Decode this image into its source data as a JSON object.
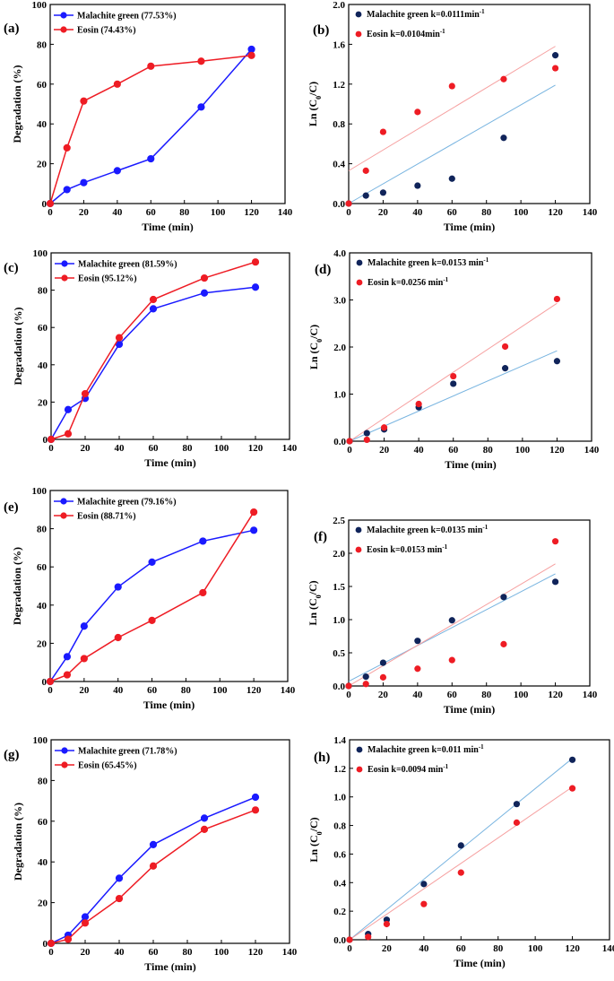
{
  "colors": {
    "blue": "#1a1aff",
    "red": "#ee1c24",
    "navy": "#10245a",
    "fitBlue": "#78b4e0",
    "fitRed": "#f6a0a0"
  },
  "chart_data": [
    {
      "id": "a",
      "panel_label": "(a)",
      "type": "line",
      "xlabel": "Time (min)",
      "ylabel": "Degradation (%)",
      "xlim": [
        0,
        140
      ],
      "ylim": [
        0,
        100
      ],
      "xticks": [
        0,
        20,
        40,
        60,
        80,
        100,
        120,
        140
      ],
      "yticks": [
        0,
        20,
        40,
        60,
        80,
        100
      ],
      "series": [
        {
          "name": "Malachite green (77.53%)",
          "color": "#1a1aff",
          "x": [
            0,
            10,
            20,
            40,
            60,
            90,
            120
          ],
          "y": [
            0,
            7,
            10.5,
            16.5,
            22.5,
            48.5,
            77.5
          ]
        },
        {
          "name": "Eosin (74.43%)",
          "color": "#ee1c24",
          "x": [
            0,
            10,
            20,
            40,
            60,
            90,
            120
          ],
          "y": [
            0,
            28,
            51.5,
            60,
            69,
            71.5,
            74.4
          ]
        }
      ]
    },
    {
      "id": "b",
      "panel_label": "(b)",
      "type": "scatter",
      "xlabel": "Time (min)",
      "ylabel": "Ln (C0/C)",
      "xlim": [
        0,
        140
      ],
      "ylim": [
        0,
        2.0
      ],
      "xticks": [
        0,
        20,
        40,
        60,
        80,
        100,
        120,
        140
      ],
      "yticks": [
        0.0,
        0.4,
        0.8,
        1.2,
        1.6,
        2.0
      ],
      "ytick_decimals": 1,
      "series": [
        {
          "name": "Malachite green",
          "rate": "k=0.0111min",
          "color": "#10245a",
          "x": [
            0,
            10,
            20,
            40,
            60,
            90,
            120
          ],
          "y": [
            0,
            0.08,
            0.11,
            0.18,
            0.25,
            0.66,
            1.49
          ],
          "fit": [
            0.0,
            1.19
          ],
          "fit_color": "#78b4e0"
        },
        {
          "name": "Eosin",
          "rate": "k=0.0104min",
          "color": "#ee1c24",
          "x": [
            0,
            10,
            20,
            40,
            60,
            90,
            120
          ],
          "y": [
            0,
            0.33,
            0.72,
            0.92,
            1.18,
            1.25,
            1.36
          ],
          "fit": [
            0.33,
            1.58
          ],
          "fit_color": "#f6a0a0"
        }
      ]
    },
    {
      "id": "c",
      "panel_label": "(c)",
      "type": "line",
      "xlabel": "Time (min)",
      "ylabel": "Degradation (%)",
      "xlim": [
        0,
        140
      ],
      "ylim": [
        0,
        100
      ],
      "xticks": [
        0,
        20,
        40,
        60,
        80,
        100,
        120,
        140
      ],
      "yticks": [
        0,
        20,
        40,
        60,
        80,
        100
      ],
      "series": [
        {
          "name": "Malachite green (81.59%)",
          "color": "#1a1aff",
          "x": [
            0,
            10,
            20,
            40,
            60,
            90,
            120
          ],
          "y": [
            0,
            16,
            22,
            51,
            70,
            78.5,
            81.6
          ]
        },
        {
          "name": "Eosin (95.12%)",
          "color": "#ee1c24",
          "x": [
            0,
            10,
            20,
            40,
            60,
            90,
            120
          ],
          "y": [
            0,
            3,
            24.5,
            54.5,
            75,
            86.5,
            95.1
          ]
        }
      ]
    },
    {
      "id": "d",
      "panel_label": "(d)",
      "type": "scatter",
      "xlabel": "Time (min)",
      "ylabel": "Ln (C0/C)",
      "xlim": [
        0,
        140
      ],
      "ylim": [
        0,
        4.0
      ],
      "xticks": [
        0,
        20,
        40,
        60,
        80,
        100,
        120,
        140
      ],
      "yticks": [
        0.0,
        1.0,
        2.0,
        3.0,
        4.0
      ],
      "ytick_decimals": 1,
      "series": [
        {
          "name": "Malachite green",
          "rate": "k=0.0153 min",
          "color": "#10245a",
          "x": [
            0,
            10,
            20,
            40,
            60,
            90,
            120
          ],
          "y": [
            0,
            0.17,
            0.25,
            0.72,
            1.22,
            1.55,
            1.7
          ],
          "fit": [
            0.0,
            1.92
          ],
          "fit_color": "#78b4e0"
        },
        {
          "name": "Eosin",
          "rate": "k=0.0256 min",
          "color": "#ee1c24",
          "x": [
            0,
            10,
            20,
            40,
            60,
            90,
            120
          ],
          "y": [
            0,
            0.03,
            0.29,
            0.79,
            1.38,
            2.01,
            3.02
          ],
          "fit": [
            0.0,
            2.93
          ],
          "fit_color": "#f6a0a0"
        }
      ]
    },
    {
      "id": "e",
      "panel_label": "(e)",
      "type": "line",
      "xlabel": "Time (min)",
      "ylabel": "Degradation (%)",
      "xlim": [
        0,
        140
      ],
      "ylim": [
        0,
        100
      ],
      "xticks": [
        0,
        20,
        40,
        60,
        80,
        100,
        120,
        140
      ],
      "yticks": [
        0,
        20,
        40,
        60,
        80,
        100
      ],
      "series": [
        {
          "name": "Malachite green (79.16%)",
          "color": "#1a1aff",
          "x": [
            0,
            10,
            20,
            40,
            60,
            90,
            120
          ],
          "y": [
            0,
            13,
            29,
            49.5,
            62.5,
            73.5,
            79.2
          ]
        },
        {
          "name": "Eosin (88.71%)",
          "color": "#ee1c24",
          "x": [
            0,
            10,
            20,
            40,
            60,
            90,
            120
          ],
          "y": [
            0,
            3.5,
            12,
            23,
            32,
            46.5,
            88.7
          ]
        }
      ]
    },
    {
      "id": "f",
      "panel_label": "(f)",
      "type": "scatter",
      "xlabel": "Time (min)",
      "ylabel": "Ln (C0/C)",
      "xlim": [
        0,
        140
      ],
      "ylim": [
        0,
        2.5
      ],
      "xticks": [
        0,
        20,
        40,
        60,
        80,
        100,
        120,
        140
      ],
      "yticks": [
        0.0,
        0.5,
        1.0,
        1.5,
        2.0,
        2.5
      ],
      "ytick_decimals": 1,
      "series": [
        {
          "name": "Malachite green",
          "rate": "k=0.0135 min",
          "color": "#10245a",
          "x": [
            0,
            10,
            20,
            40,
            60,
            90,
            120
          ],
          "y": [
            0,
            0.14,
            0.35,
            0.68,
            0.99,
            1.34,
            1.57
          ],
          "fit": [
            0.07,
            1.69
          ],
          "fit_color": "#78b4e0"
        },
        {
          "name": "Eosin",
          "rate": "k=0.0153 min",
          "color": "#ee1c24",
          "x": [
            0,
            10,
            20,
            40,
            60,
            90,
            120
          ],
          "y": [
            0,
            0.03,
            0.13,
            0.26,
            0.39,
            0.63,
            2.18
          ],
          "fit": [
            0.0,
            1.84
          ],
          "fit_color": "#f6a0a0"
        }
      ]
    },
    {
      "id": "g",
      "panel_label": "(g)",
      "type": "line",
      "xlabel": "Time (min)",
      "ylabel": "Degradation (%)",
      "xlim": [
        0,
        140
      ],
      "ylim": [
        0,
        100
      ],
      "xticks": [
        0,
        20,
        40,
        60,
        80,
        100,
        120,
        140
      ],
      "yticks": [
        0,
        20,
        40,
        60,
        80,
        100
      ],
      "series": [
        {
          "name": "Malachite green (71.78%)",
          "color": "#1a1aff",
          "x": [
            0,
            10,
            20,
            40,
            60,
            90,
            120
          ],
          "y": [
            0,
            4,
            13,
            32,
            48.5,
            61.5,
            71.8
          ]
        },
        {
          "name": "Eosin (65.45%)",
          "color": "#ee1c24",
          "x": [
            0,
            10,
            20,
            40,
            60,
            90,
            120
          ],
          "y": [
            0,
            2,
            10,
            22,
            38,
            56,
            65.5
          ]
        }
      ]
    },
    {
      "id": "h",
      "panel_label": "(h)",
      "type": "scatter",
      "xlabel": "Time (min)",
      "ylabel": "Ln (C0/C)",
      "xlim": [
        0,
        140
      ],
      "ylim": [
        0,
        1.4
      ],
      "xticks": [
        0,
        20,
        40,
        60,
        80,
        100,
        120,
        140
      ],
      "yticks": [
        0.0,
        0.2,
        0.4,
        0.6,
        0.8,
        1.0,
        1.2,
        1.4
      ],
      "ytick_decimals": 1,
      "series": [
        {
          "name": "Malachite green",
          "rate": "k=0.011 min",
          "color": "#10245a",
          "x": [
            0,
            10,
            20,
            40,
            60,
            90,
            120
          ],
          "y": [
            0,
            0.04,
            0.14,
            0.39,
            0.66,
            0.95,
            1.26
          ],
          "fit": [
            0.0,
            1.27
          ],
          "fit_color": "#78b4e0"
        },
        {
          "name": "Eosin",
          "rate": "k=0.0094 min",
          "color": "#ee1c24",
          "x": [
            0,
            10,
            20,
            40,
            60,
            90,
            120
          ],
          "y": [
            0,
            0.02,
            0.11,
            0.25,
            0.47,
            0.82,
            1.06
          ],
          "fit": [
            0.0,
            1.07
          ],
          "fit_color": "#f6a0a0"
        }
      ]
    }
  ]
}
